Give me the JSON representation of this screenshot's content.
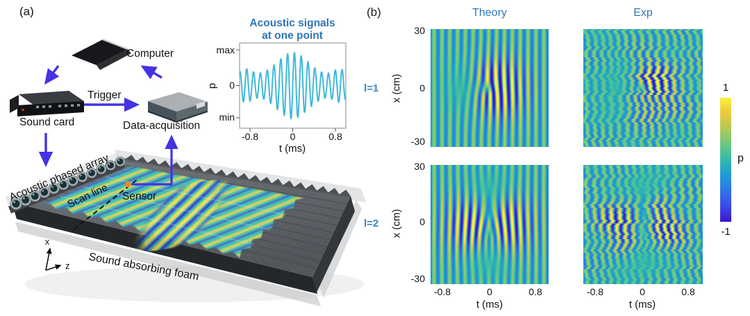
{
  "panel_a": {
    "label": "(a)",
    "devices": {
      "computer": "Computer",
      "sound_card": "Sound card",
      "trigger": "Trigger",
      "daq": "Data-acquisition"
    },
    "scene": {
      "array_label": "Acoustic phased array",
      "scan_line": "Scan line",
      "sensor": "Sensor",
      "foam": "Sound absorbing foam",
      "axis_x": "x",
      "axis_z": "z"
    },
    "inset": {
      "title1": "Acoustic signals",
      "title2": "at one point",
      "ylabel": "p",
      "ytick_max": "max",
      "ytick_zero": "0",
      "ytick_min": "min",
      "xtick_neg": "-0.8",
      "xtick_zero": "0",
      "xtick_pos": "0.8",
      "xlabel": "t (ms)"
    }
  },
  "panel_b": {
    "label": "(b)",
    "columns": [
      "Theory",
      "Exp"
    ],
    "rows": [
      "l=1",
      "l=2"
    ],
    "ylabel": "x (cm)",
    "y_ticks": [
      "30",
      "0",
      "-30"
    ],
    "x_ticks": [
      "-0.8",
      "0",
      "0.8"
    ],
    "xlabel": "t (ms)",
    "colorbar": {
      "max": "1",
      "min": "-1",
      "label": "p"
    }
  },
  "colors": {
    "accent_blue": "#2e76b8",
    "arrow_blue": "#4432e4",
    "waveform_cyan": "#3fb9d9",
    "sensor_orange": "#f5861d",
    "heatmap_background_teal": "#34baaa"
  },
  "chart_data": [
    {
      "id": "inset-waveform",
      "type": "line",
      "title": "Acoustic signals at one point",
      "xlabel": "t (ms)",
      "ylabel": "p",
      "x_range_ms": [
        -1.0,
        1.0
      ],
      "x_ticks": [
        -0.8,
        0,
        0.8
      ],
      "y_ticks": [
        "max",
        "0",
        "min"
      ],
      "line_color": "#3fb9d9",
      "signal": {
        "carrier_cycles_per_ms": 7.8,
        "base_amplitude": 0.3,
        "gauss_amplitude": 0.7,
        "gauss_sigma_ms": 0.4,
        "edge_lobe_amplitude": 0.2,
        "edge_lobe_center_ms": 0.88,
        "edge_lobe_sigma_ms": 0.16
      }
    },
    {
      "id": "vortex-field-maps",
      "type": "heatmap",
      "columns": [
        "Theory",
        "Exp"
      ],
      "rows": [
        {
          "label": "l=1",
          "topological_charge": 1
        },
        {
          "label": "l=2",
          "topological_charge": 2
        }
      ],
      "xlabel": "t (ms)",
      "ylabel": "x (cm)",
      "x_range_ms": [
        -1.0,
        1.0
      ],
      "x_ticks": [
        -0.8,
        0,
        0.8
      ],
      "y_range_cm": [
        -30,
        30
      ],
      "y_ticks": [
        30,
        0,
        -30
      ],
      "description": "Space-time pressure maps of acoustic vortex pulses: plane-wave carrier stripes with an l-fold fork dislocation at the center; Exp columns are noisy/wavy versions of Theory.",
      "colorbar": {
        "label": "p",
        "max": 1,
        "min": -1,
        "colormap": "parula",
        "stops": [
          [
            0,
            "#3a16c8"
          ],
          [
            0.13,
            "#3e4aeb"
          ],
          [
            0.27,
            "#2d7be6"
          ],
          [
            0.39,
            "#1e9ed2"
          ],
          [
            0.5,
            "#34baaa"
          ],
          [
            0.63,
            "#70c880"
          ],
          [
            0.76,
            "#b6ca52"
          ],
          [
            0.88,
            "#ecca3a"
          ],
          [
            1,
            "#faf03e"
          ]
        ]
      },
      "model": {
        "carrier_cycles_per_ms": 7.5,
        "outer_amp": 0.52,
        "inner_amp": 1.25,
        "inner_sigma": [
          0.52,
          0.62
        ],
        "core_radius": [
          0.1,
          0.17
        ],
        "phase0": 0.5,
        "exp_noise": {
          "jitter": 0.022,
          "amp_mottle": 0.3,
          "rows": 60,
          "speckle": 0.045
        }
      }
    }
  ]
}
